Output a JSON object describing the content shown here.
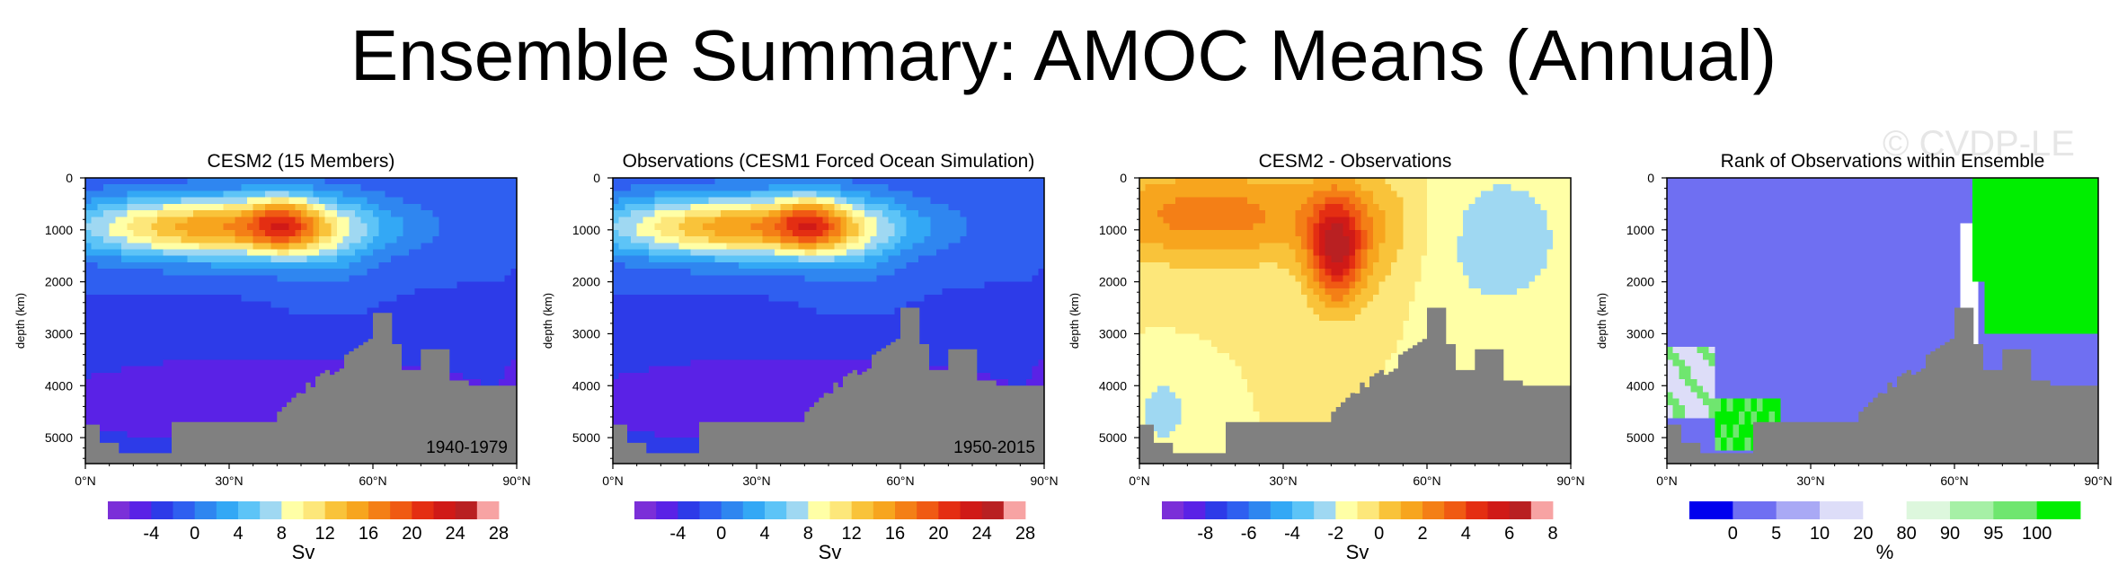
{
  "title": "Ensemble Summary: AMOC Means (Annual)",
  "watermark": "© CVDP-LE",
  "chart_data": [
    {
      "type": "heatmap",
      "title": "CESM2 (15 Members)",
      "period": "1940-1979",
      "ylabel": "depth (km)",
      "xlim": [
        0,
        90
      ],
      "ylim": [
        0,
        5500
      ],
      "xticks": [
        "0°N",
        "30°N",
        "60°N",
        "90°N"
      ],
      "yticks": [
        "0",
        "1000",
        "2000",
        "3000",
        "4000",
        "5000"
      ],
      "field": "amoc",
      "bathy": "a",
      "colorbar": {
        "labels": [
          "-4",
          "0",
          "4",
          "8",
          "12",
          "16",
          "20",
          "24",
          "28"
        ],
        "units": "Sv"
      }
    },
    {
      "type": "heatmap",
      "title": "Observations (CESM1 Forced Ocean Simulation)",
      "period": "1950-2015",
      "ylabel": "depth (km)",
      "xlim": [
        0,
        90
      ],
      "ylim": [
        0,
        5500
      ],
      "xticks": [
        "0°N",
        "30°N",
        "60°N",
        "90°N"
      ],
      "yticks": [
        "0",
        "1000",
        "2000",
        "3000",
        "4000",
        "5000"
      ],
      "field": "amoc",
      "bathy": "b",
      "colorbar": {
        "labels": [
          "-4",
          "0",
          "4",
          "8",
          "12",
          "16",
          "20",
          "24",
          "28"
        ],
        "units": "Sv"
      }
    },
    {
      "type": "heatmap",
      "title": "CESM2 - Observations",
      "period": "",
      "ylabel": "depth (km)",
      "xlim": [
        0,
        90
      ],
      "ylim": [
        0,
        5500
      ],
      "xticks": [
        "0°N",
        "30°N",
        "60°N",
        "90°N"
      ],
      "yticks": [
        "0",
        "1000",
        "2000",
        "3000",
        "4000",
        "5000"
      ],
      "field": "diff",
      "bathy": "b",
      "colorbar": {
        "labels": [
          "-8",
          "-6",
          "-4",
          "-2",
          "0",
          "2",
          "4",
          "6",
          "8"
        ],
        "units": "Sv"
      }
    },
    {
      "type": "heatmap",
      "title": "Rank of Observations within Ensemble",
      "period": "",
      "ylabel": "depth (km)",
      "xlim": [
        0,
        90
      ],
      "ylim": [
        0,
        5500
      ],
      "xticks": [
        "0°N",
        "30°N",
        "60°N",
        "90°N"
      ],
      "yticks": [
        "0",
        "1000",
        "2000",
        "3000",
        "4000",
        "5000"
      ],
      "field": "rank",
      "bathy": "b",
      "colorbar": {
        "labels": [
          "0",
          "5",
          "10",
          "20",
          "80",
          "90",
          "95",
          "100"
        ],
        "units": "%"
      }
    }
  ],
  "colors": {
    "bathymetry": "#808080",
    "amoc_scale": [
      "#7b2fd8",
      "#5a22e6",
      "#2d3be8",
      "#2f5ff0",
      "#2f86f0",
      "#33a8f5",
      "#5dc4f7",
      "#9fd8f2",
      "#ffffa6",
      "#fde77a",
      "#f9c33a",
      "#f7a51e",
      "#f47f16",
      "#f05a13",
      "#e42e12",
      "#d01a17",
      "#b92022",
      "#f7a3a3"
    ],
    "diff_scale": [
      "#7b2fd8",
      "#5a22e6",
      "#2d3be8",
      "#2f5ff0",
      "#2f86f0",
      "#33a8f5",
      "#5dc4f7",
      "#9fd8f2",
      "#ffffa6",
      "#fde77a",
      "#f9c33a",
      "#f7a51e",
      "#f47f16",
      "#f05a13",
      "#e42e12",
      "#d01a17",
      "#b92022",
      "#f7a3a3"
    ],
    "rank_scale": [
      "#0000ee",
      "#6f6ff2",
      "#a9a9f5",
      "#ddddf8",
      "#ffffff",
      "#ddf7dd",
      "#a6f0a6",
      "#6fe66f",
      "#00ee00"
    ]
  }
}
